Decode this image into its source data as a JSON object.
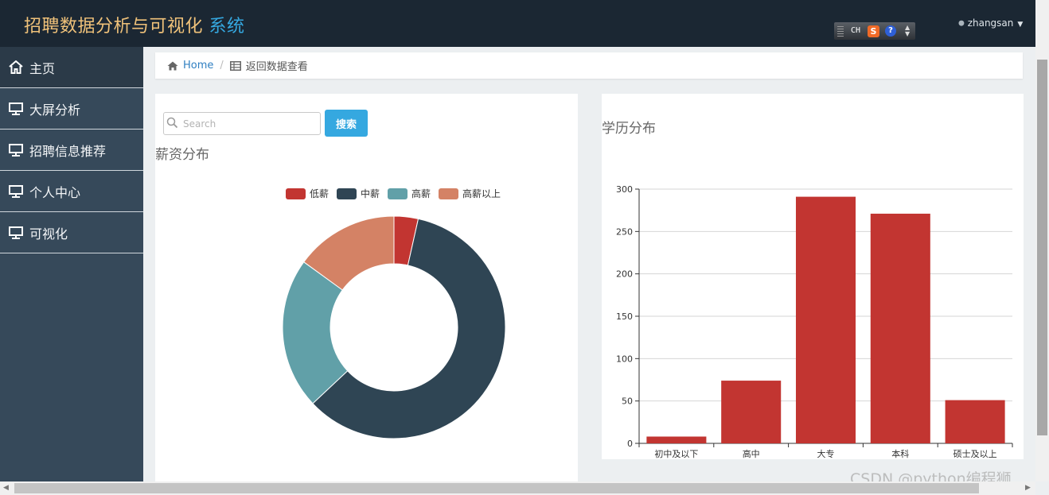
{
  "header": {
    "brand_main": "招聘数据分析与可视化",
    "brand_accent": "系统",
    "ime": {
      "mode": "CH",
      "logo": "S",
      "help": "?"
    },
    "user": "zhangsan"
  },
  "sidebar": {
    "items": [
      {
        "label": "主页",
        "icon": "home-icon"
      },
      {
        "label": "大屏分析",
        "icon": "monitor-icon"
      },
      {
        "label": "招聘信息推荐",
        "icon": "monitor-icon"
      },
      {
        "label": "个人中心",
        "icon": "monitor-icon"
      },
      {
        "label": "可视化",
        "icon": "monitor-icon"
      }
    ]
  },
  "breadcrumb": {
    "home": "Home",
    "current": "返回数据查看"
  },
  "search": {
    "placeholder": "Search",
    "value": "",
    "button": "搜索"
  },
  "salary_panel": {
    "title": "薪资分布"
  },
  "education_panel": {
    "title": "学历分布"
  },
  "watermark": "CSDN @python编程狮",
  "colors": {
    "low": "#c23531",
    "mid": "#2f4554",
    "high": "#61a0a8",
    "top": "#d48265",
    "accent": "#35a8e0"
  },
  "chart_data": [
    {
      "type": "pie",
      "title": "薪资分布",
      "donut": true,
      "legend_position": "top",
      "categories": [
        "低薪",
        "中薪",
        "高薪",
        "高薪以上"
      ],
      "values": [
        3.5,
        59.5,
        22,
        15
      ],
      "colors": [
        "#c23531",
        "#2f4554",
        "#61a0a8",
        "#d48265"
      ]
    },
    {
      "type": "bar",
      "title": "学历分布",
      "categories": [
        "初中及以下",
        "高中",
        "大专",
        "本科",
        "硕士及以上"
      ],
      "values": [
        8,
        74,
        291,
        271,
        51
      ],
      "ylim": [
        0,
        300
      ],
      "yticks": [
        "0",
        "50",
        "100",
        "150",
        "200",
        "250",
        "300"
      ],
      "grid": true,
      "color": "#c23531"
    }
  ]
}
